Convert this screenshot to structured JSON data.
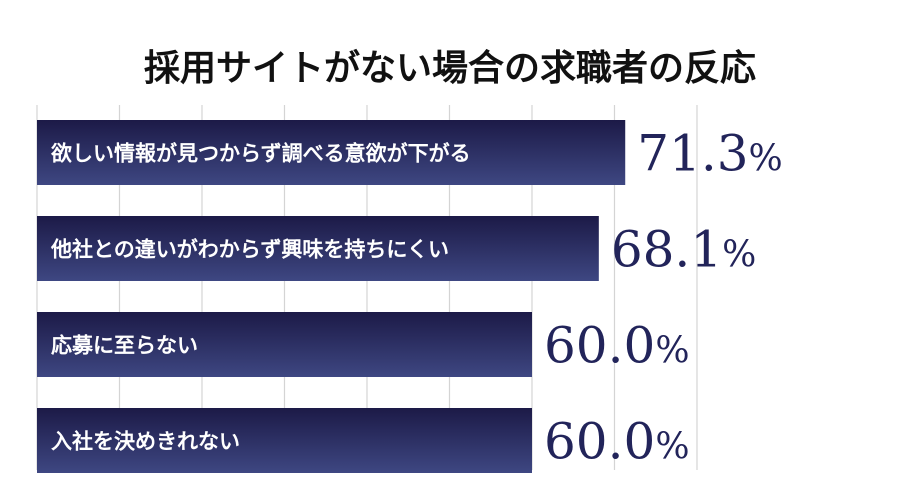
{
  "chart_data": {
    "type": "bar",
    "orientation": "horizontal",
    "title": "採用サイトがない場合の求職者の反応",
    "categories": [
      "欲しい情報が見つからず調べる意欲が下がる",
      "他社との違いがわからず興味を持ちにくい",
      "応募に至らない",
      "入社を決めきれない"
    ],
    "values": [
      71.3,
      68.1,
      60.0,
      60.0
    ],
    "value_labels": [
      "71.3",
      "68.1",
      "60.0",
      "60.0"
    ],
    "unit": "%",
    "xlim": [
      0,
      100
    ],
    "grid": true,
    "legend": "none",
    "colors": {
      "bar_top": "#1c1a47",
      "bar_bottom": "#3e4782",
      "value_text": "#22245a",
      "grid": "#d4d4d4",
      "title": "#111111"
    }
  }
}
